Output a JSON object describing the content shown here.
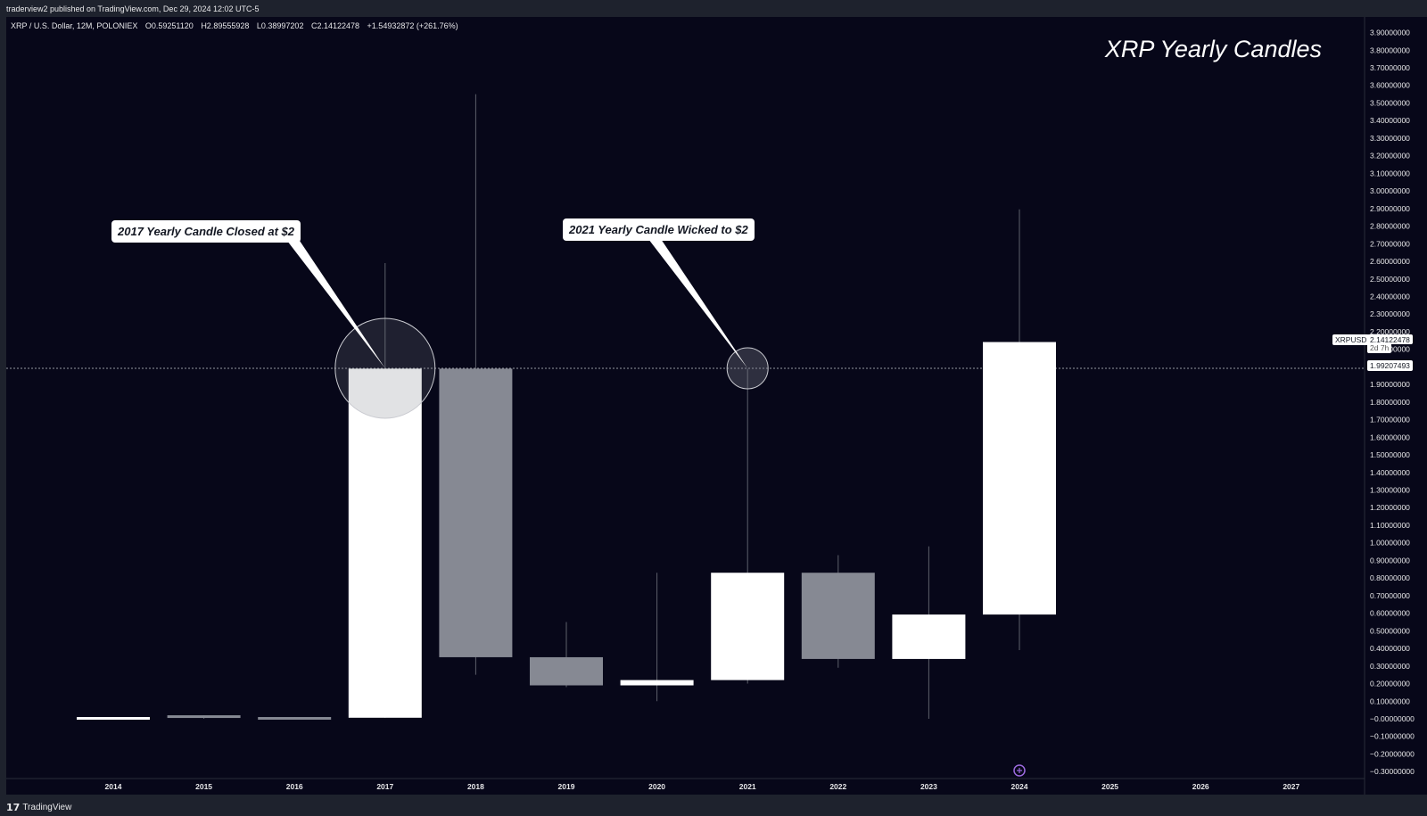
{
  "header": {
    "published": "traderview2 published on TradingView.com, Dec 29, 2024 12:02 UTC-5"
  },
  "legend": {
    "symbol": "XRP / U.S. Dollar, 12M, POLONIEX",
    "open": "O0.59251120",
    "high": "H2.89555928",
    "low": "L0.38997202",
    "close": "C2.14122478",
    "change": "+1.54932872 (+261.76%)"
  },
  "annotations": {
    "title": "XRP Yearly Candles",
    "callout_2017": "2017 Yearly Candle Closed at $2",
    "callout_2021": "2021 Yearly Candle Wicked to $2"
  },
  "price_tags": {
    "symbol_label": "XRPUSD",
    "last_price": "2.14122478",
    "countdown": "2d 7h",
    "crosshair_price": "1.99207493"
  },
  "footer": {
    "brand": "TradingView",
    "brand_logo": "17"
  },
  "colors": {
    "background": "#070719",
    "frame": "#1e222d",
    "up_candle": "#ffffff",
    "down_candle": "#868993",
    "wick": "#5d606b",
    "text": "#e8e8ea",
    "callout_bg": "#ffffff",
    "event_marker": "#9c6ade"
  },
  "chart_data": {
    "type": "candlestick",
    "title": "XRP Yearly Candles",
    "symbol": "XRP / U.S. Dollar",
    "interval": "12M",
    "exchange": "POLONIEX",
    "x_ticks": [
      "2014",
      "2015",
      "2016",
      "2017",
      "2018",
      "2019",
      "2020",
      "2021",
      "2022",
      "2023",
      "2024",
      "2025",
      "2026",
      "2027"
    ],
    "y_ticks": [
      "3.90000000",
      "3.80000000",
      "3.70000000",
      "3.60000000",
      "3.50000000",
      "3.40000000",
      "3.30000000",
      "3.20000000",
      "3.10000000",
      "3.00000000",
      "2.90000000",
      "2.80000000",
      "2.70000000",
      "2.60000000",
      "2.50000000",
      "2.40000000",
      "2.30000000",
      "2.20000000",
      "2.10000000",
      "2.00000000",
      "1.90000000",
      "1.80000000",
      "1.70000000",
      "1.60000000",
      "1.50000000",
      "1.40000000",
      "1.30000000",
      "1.20000000",
      "1.10000000",
      "1.00000000",
      "0.90000000",
      "0.80000000",
      "0.70000000",
      "0.60000000",
      "0.50000000",
      "0.40000000",
      "0.30000000",
      "0.20000000",
      "0.10000000",
      "−0.00000000",
      "−0.10000000",
      "−0.20000000",
      "−0.30000000"
    ],
    "ylim": [
      -0.33,
      3.93
    ],
    "grid": false,
    "crosshair_price": 1.99207493,
    "candles": [
      {
        "year": "2014",
        "open": 0.01,
        "high": 0.01,
        "low": 0.0,
        "close": 0.01
      },
      {
        "year": "2015",
        "open": 0.02,
        "high": 0.02,
        "low": 0.0,
        "close": 0.01
      },
      {
        "year": "2016",
        "open": 0.01,
        "high": 0.01,
        "low": 0.0,
        "close": 0.006
      },
      {
        "year": "2017",
        "open": 0.006,
        "high": 2.59,
        "low": 0.005,
        "close": 1.99
      },
      {
        "year": "2018",
        "open": 1.99,
        "high": 3.55,
        "low": 0.25,
        "close": 0.35
      },
      {
        "year": "2019",
        "open": 0.35,
        "high": 0.55,
        "low": 0.18,
        "close": 0.19
      },
      {
        "year": "2020",
        "open": 0.19,
        "high": 0.83,
        "low": 0.1,
        "close": 0.22
      },
      {
        "year": "2021",
        "open": 0.22,
        "high": 1.99,
        "low": 0.2,
        "close": 0.83
      },
      {
        "year": "2022",
        "open": 0.83,
        "high": 0.93,
        "low": 0.29,
        "close": 0.34
      },
      {
        "year": "2023",
        "open": 0.34,
        "high": 0.98,
        "low": 0.0,
        "close": 0.5925
      },
      {
        "year": "2024",
        "open": 0.5925,
        "high": 2.8956,
        "low": 0.39,
        "close": 2.1412
      }
    ]
  }
}
